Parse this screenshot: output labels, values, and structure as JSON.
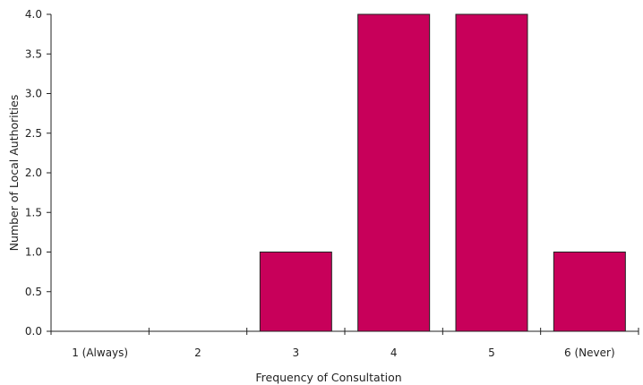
{
  "chart_data": {
    "type": "bar",
    "categories": [
      "1 (Always)",
      "2",
      "3",
      "4",
      "5",
      "6 (Never)"
    ],
    "values": [
      0,
      0,
      1,
      4,
      4,
      1
    ],
    "xlabel": "Frequency of Consultation",
    "ylabel": "Number of Local Authorities",
    "ylim": [
      0,
      4.0
    ],
    "yticks": [
      "0.0",
      "0.5",
      "1.0",
      "1.5",
      "2.0",
      "2.5",
      "3.0",
      "3.5",
      "4.0"
    ],
    "grid": false,
    "bar_color": "#c8005a",
    "axis_color": "#222222"
  }
}
